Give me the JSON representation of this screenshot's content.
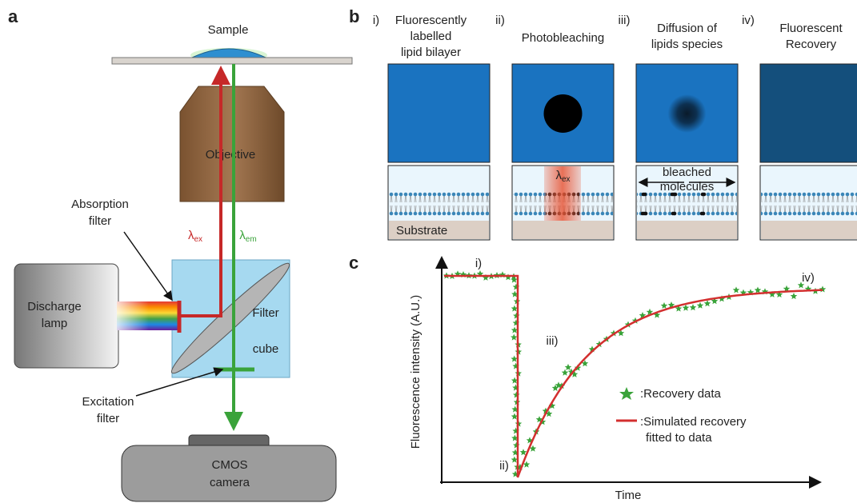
{
  "panel_a": {
    "label": "a",
    "sample": "Sample",
    "objective": "Objective",
    "lambda": "λ",
    "ex": "ex",
    "em": "em",
    "absorption_filter": [
      "Absorption",
      "filter"
    ],
    "discharge_lamp": [
      "Discharge",
      "lamp"
    ],
    "filter_cube": [
      "Filter",
      "cube"
    ],
    "excitation_filter": [
      "Excitation",
      "filter"
    ],
    "camera": [
      "CMOS",
      "camera"
    ]
  },
  "panel_b": {
    "label": "b",
    "steps": [
      {
        "num": "i)",
        "title": [
          "Fluorescently",
          "labelled",
          "lipid bilayer"
        ]
      },
      {
        "num": "ii)",
        "title": [
          "Photobleaching"
        ]
      },
      {
        "num": "iii)",
        "title": [
          "Diffusion of",
          "lipids species"
        ]
      },
      {
        "num": "iv)",
        "title": [
          "Fluorescent",
          "Recovery"
        ]
      }
    ],
    "substrate": "Substrate",
    "lambda": "λ",
    "ex": "ex",
    "bleached": [
      "bleached",
      "molecules"
    ]
  },
  "panel_c": {
    "label": "c",
    "phases": [
      "i)",
      "ii)",
      "iii)",
      "iv)"
    ],
    "y_label": "Fluorescence intensity (A.U.)",
    "x_label": "Time",
    "legend": {
      "data": ":Recovery data",
      "fit": [
        ":Simulated recovery",
        "fitted to data"
      ]
    }
  }
}
